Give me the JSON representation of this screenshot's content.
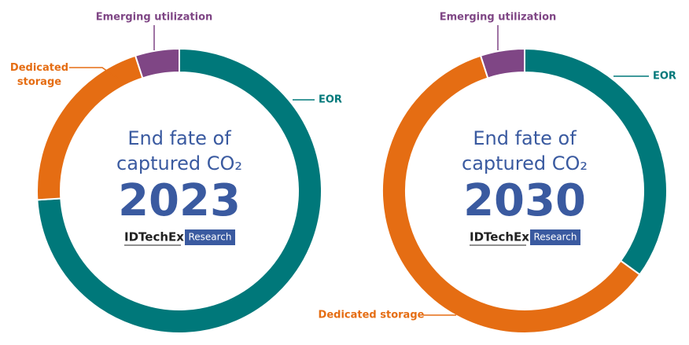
{
  "chart_data": [
    {
      "type": "donut",
      "center_text": [
        "End fate of",
        "captured CO₂"
      ],
      "year": "2023",
      "logo": "IDTechEx",
      "logo_tag": "Research",
      "categories": [
        "EOR",
        "Dedicated storage",
        "Emerging utilization"
      ],
      "values": [
        74,
        21,
        5
      ],
      "colors": [
        "#00787a",
        "#e56d13",
        "#7f4685"
      ]
    },
    {
      "type": "donut",
      "center_text": [
        "End fate of",
        "captured CO₂"
      ],
      "year": "2030",
      "logo": "IDTechEx",
      "logo_tag": "Research",
      "categories": [
        "EOR",
        "Dedicated storage",
        "Emerging utilization"
      ],
      "values": [
        35,
        60,
        5
      ],
      "colors": [
        "#00787a",
        "#e56d13",
        "#7f4685"
      ]
    }
  ]
}
